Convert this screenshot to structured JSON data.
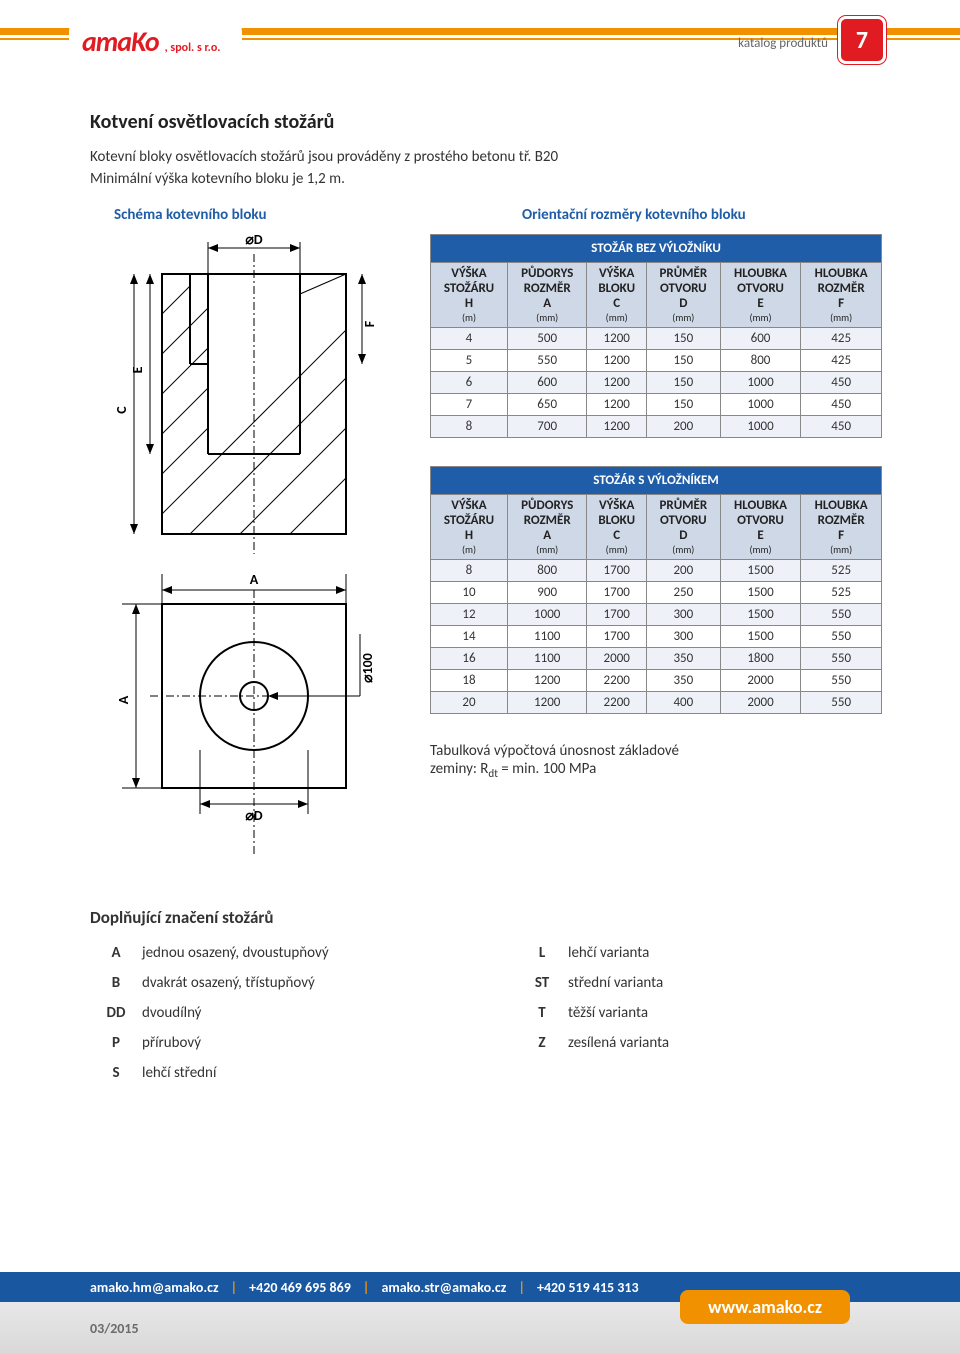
{
  "header": {
    "logo_main": "amaKo",
    "logo_sub": ", spol. s r.o.",
    "katalog_label": "katalog produktů",
    "page_number": "7"
  },
  "title": "Kotvení osvětlovacích stožárů",
  "intro_line1": "Kotevní bloky osvětlovacích stožárů jsou prováděny z prostého betonu tř. B20",
  "intro_line2": "Minimální výška kotevního bloku je 1,2 m.",
  "col_header_left": "Schéma kotevního bloku",
  "col_header_right": "Orientační rozměry kotevního bloku",
  "diagram_labels": {
    "d_top": "⌀D",
    "C": "C",
    "E": "E",
    "F": "F",
    "A_side": "A",
    "A_top": "A",
    "d_bot": "⌀D",
    "o100": "⌀100"
  },
  "table1": {
    "title": "STOŽÁR BEZ VÝLOŽNÍKU",
    "columns": [
      {
        "l1": "VÝŠKA",
        "l2": "STOŽÁRU",
        "l3": "H",
        "unit": "(m)"
      },
      {
        "l1": "PŮDORYS",
        "l2": "ROZMĚR",
        "l3": "A",
        "unit": "(mm)"
      },
      {
        "l1": "VÝŠKA",
        "l2": "BLOKU",
        "l3": "C",
        "unit": "(mm)"
      },
      {
        "l1": "PRŮMĚR",
        "l2": "OTVORU",
        "l3": "D",
        "unit": "(mm)"
      },
      {
        "l1": "HLOUBKA",
        "l2": "OTVORU",
        "l3": "E",
        "unit": "(mm)"
      },
      {
        "l1": "HLOUBKA",
        "l2": "ROZMĚR",
        "l3": "F",
        "unit": "(mm)"
      }
    ],
    "rows": [
      [
        "4",
        "500",
        "1200",
        "150",
        "600",
        "425"
      ],
      [
        "5",
        "550",
        "1200",
        "150",
        "800",
        "425"
      ],
      [
        "6",
        "600",
        "1200",
        "150",
        "1000",
        "450"
      ],
      [
        "7",
        "650",
        "1200",
        "150",
        "1000",
        "450"
      ],
      [
        "8",
        "700",
        "1200",
        "200",
        "1000",
        "450"
      ]
    ]
  },
  "table2": {
    "title": "STOŽÁR S VÝLOŽNÍKEM",
    "columns": [
      {
        "l1": "VÝŠKA",
        "l2": "STOŽÁRU",
        "l3": "H",
        "unit": "(m)"
      },
      {
        "l1": "PŮDORYS",
        "l2": "ROZMĚR",
        "l3": "A",
        "unit": "(mm)"
      },
      {
        "l1": "VÝŠKA",
        "l2": "BLOKU",
        "l3": "C",
        "unit": "(mm)"
      },
      {
        "l1": "PRŮMĚR",
        "l2": "OTVORU",
        "l3": "D",
        "unit": "(mm)"
      },
      {
        "l1": "HLOUBKA",
        "l2": "OTVORU",
        "l3": "E",
        "unit": "(mm)"
      },
      {
        "l1": "HLOUBKA",
        "l2": "ROZMĚR",
        "l3": "F",
        "unit": "(mm)"
      }
    ],
    "rows": [
      [
        "8",
        "800",
        "1700",
        "200",
        "1500",
        "525"
      ],
      [
        "10",
        "900",
        "1700",
        "250",
        "1500",
        "525"
      ],
      [
        "12",
        "1000",
        "1700",
        "300",
        "1500",
        "550"
      ],
      [
        "14",
        "1100",
        "1700",
        "300",
        "1500",
        "550"
      ],
      [
        "16",
        "1100",
        "2000",
        "350",
        "1800",
        "550"
      ],
      [
        "18",
        "1200",
        "2200",
        "350",
        "2000",
        "550"
      ],
      [
        "20",
        "1200",
        "2200",
        "400",
        "2000",
        "550"
      ]
    ]
  },
  "note_line1": "Tabulková výpočtová únosnost základové",
  "note_line2_prefix": "zeminy: R",
  "note_line2_sub": "dt",
  "note_line2_suffix": " = min. 100 MPa",
  "marks_title": "Doplňující značení stožárů",
  "marks_left": [
    {
      "code": "A",
      "desc": "jednou osazený, dvoustupňový"
    },
    {
      "code": "B",
      "desc": "dvakrát osazený, třístupňový"
    },
    {
      "code": "DD",
      "desc": "dvoudílný"
    },
    {
      "code": "P",
      "desc": "přírubový"
    },
    {
      "code": "S",
      "desc": "lehčí střední"
    }
  ],
  "marks_right": [
    {
      "code": "L",
      "desc": "lehčí varianta"
    },
    {
      "code": "ST",
      "desc": "střední varianta"
    },
    {
      "code": "T",
      "desc": "těžší varianta"
    },
    {
      "code": "Z",
      "desc": "zesílená varianta"
    }
  ],
  "footer": {
    "email1": "amako.hm@amako.cz",
    "phone1": "+420 469 695 869",
    "email2": "amako.str@amako.cz",
    "phone2": "+420 519 415 313",
    "date": "03/2015",
    "www": "www.amako.cz"
  }
}
